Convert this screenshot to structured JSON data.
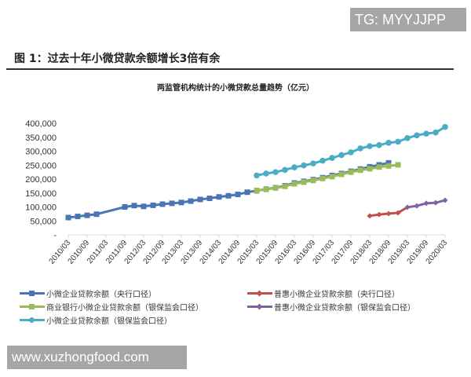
{
  "watermarks": {
    "top": "TG: MYYJJPP",
    "bottom": "www.xuzhongfood.com"
  },
  "figure_title": "图 1：过去十年小微贷款余额增长3倍有余",
  "chart_data": {
    "type": "line",
    "title": "两监管机构统计的小微贷款总量趋势（亿元）",
    "ylim": [
      0,
      400000
    ],
    "yticks": [
      0,
      50000,
      100000,
      150000,
      200000,
      250000,
      300000,
      350000,
      400000
    ],
    "ytick_labels": [
      "-",
      "50,000",
      "100,000",
      "150,000",
      "200,000",
      "250,000",
      "300,000",
      "350,000",
      "400,000"
    ],
    "x": [
      "2010/03",
      "2010/06",
      "2010/09",
      "2010/12",
      "2011/03",
      "2011/06",
      "2011/09",
      "2011/12",
      "2012/03",
      "2012/06",
      "2012/09",
      "2012/12",
      "2013/03",
      "2013/06",
      "2013/09",
      "2013/12",
      "2014/03",
      "2014/06",
      "2014/09",
      "2014/12",
      "2015/03",
      "2015/06",
      "2015/09",
      "2015/12",
      "2016/03",
      "2016/06",
      "2016/09",
      "2016/12",
      "2017/03",
      "2017/06",
      "2017/09",
      "2017/12",
      "2018/03",
      "2018/06",
      "2018/09",
      "2018/12",
      "2019/03",
      "2019/06",
      "2019/09",
      "2019/12",
      "2020/03"
    ],
    "xtick_labels": [
      "2010/03",
      "2010/09",
      "2011/03",
      "2011/09",
      "2012/03",
      "2012/09",
      "2013/03",
      "2013/09",
      "2014/03",
      "2014/09",
      "2015/03",
      "2015/09",
      "2016/03",
      "2016/09",
      "2017/03",
      "2017/09",
      "2018/03",
      "2018/09",
      "2019/03",
      "2019/09",
      "2020/03"
    ],
    "grid": false,
    "legend_position": "bottom",
    "series": [
      {
        "name": "小微企业贷款余额（央行口径）",
        "color": "#4a74b5",
        "marker": "square",
        "values": [
          62000,
          66000,
          70000,
          74000,
          null,
          null,
          100000,
          105000,
          102000,
          106000,
          110000,
          113000,
          116000,
          121000,
          127000,
          131000,
          136000,
          140000,
          145000,
          153000,
          158000,
          164000,
          169000,
          176000,
          186000,
          192000,
          198000,
          205000,
          213000,
          220000,
          228000,
          236000,
          244000,
          251000,
          258000,
          null,
          null,
          null,
          null,
          null,
          null
        ]
      },
      {
        "name": "普惠小微企业贷款余额（央行口径）",
        "color": "#c0504d",
        "marker": "diamond",
        "values": [
          null,
          null,
          null,
          null,
          null,
          null,
          null,
          null,
          null,
          null,
          null,
          null,
          null,
          null,
          null,
          null,
          null,
          null,
          null,
          null,
          null,
          null,
          null,
          null,
          null,
          null,
          null,
          null,
          null,
          null,
          null,
          null,
          68000,
          73000,
          76000,
          79000,
          null,
          null,
          null,
          null,
          null
        ]
      },
      {
        "name": "商业银行小微企业贷款余额（银保监会口径）",
        "color": "#9bbb59",
        "marker": "square",
        "values": [
          null,
          null,
          null,
          null,
          null,
          null,
          null,
          null,
          null,
          null,
          null,
          null,
          null,
          null,
          null,
          null,
          null,
          null,
          null,
          null,
          159000,
          163000,
          168000,
          174000,
          183000,
          189000,
          195000,
          202000,
          209000,
          217000,
          225000,
          232000,
          237000,
          243000,
          247000,
          251000,
          null,
          null,
          null,
          null,
          null
        ]
      },
      {
        "name": "普惠小微企业贷款余额（银保监会口径）",
        "color": "#8064a2",
        "marker": "diamond",
        "values": [
          null,
          null,
          null,
          null,
          null,
          null,
          null,
          null,
          null,
          null,
          null,
          null,
          null,
          null,
          null,
          null,
          null,
          null,
          null,
          null,
          null,
          null,
          null,
          null,
          null,
          null,
          null,
          null,
          null,
          null,
          null,
          null,
          null,
          null,
          null,
          null,
          99000,
          104000,
          113000,
          115000,
          124000
        ]
      },
      {
        "name": "小微企业贷款余额（银保监会口径）",
        "color": "#4bacc6",
        "marker": "circle",
        "values": [
          null,
          null,
          null,
          null,
          null,
          null,
          null,
          null,
          null,
          null,
          null,
          null,
          null,
          null,
          null,
          null,
          null,
          null,
          null,
          null,
          213000,
          220000,
          225000,
          233000,
          242000,
          249000,
          256000,
          266000,
          276000,
          286000,
          296000,
          310000,
          318000,
          322000,
          330000,
          334000,
          347000,
          357000,
          363000,
          367000,
          387000
        ]
      }
    ]
  }
}
